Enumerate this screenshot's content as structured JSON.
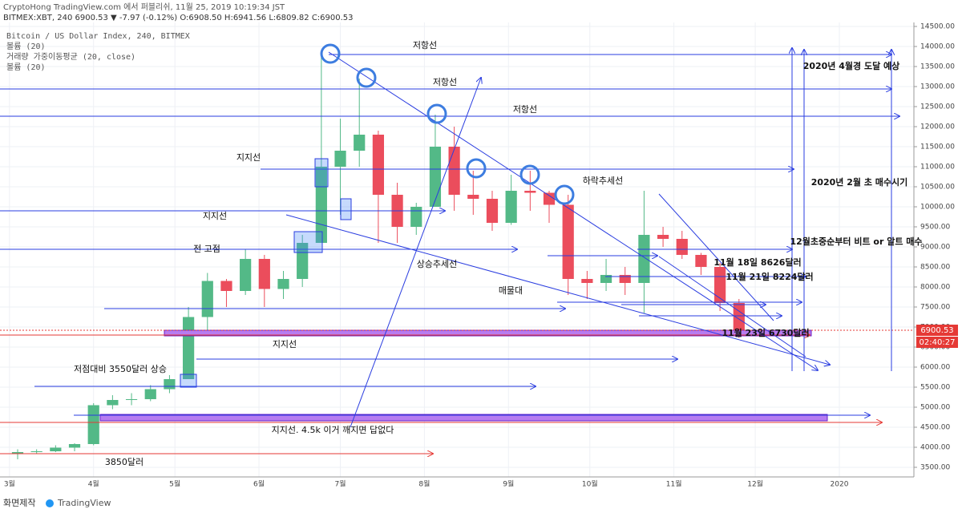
{
  "chart_data": {
    "type": "candlestick",
    "header": "CryptoHong TradingView.com 에서 퍼블리쉬, 11월 25, 2019 10:19:34 JST",
    "symbol_line": "BITMEX:XBT, 240 6900.53 ▼ -7.97 (-0.12%) O:6908.50 H:6941.56 L:6809.82 C:6900.53",
    "legend": [
      "Bitcoin / US Dollar Index, 240, BITMEX",
      "볼륨 (20)",
      "거래량 가중이동평균 (20, close)",
      "볼륨 (20)"
    ],
    "countdown": "02:40:27",
    "footer": [
      "화면제작",
      "TradingView"
    ],
    "annotations": [
      "저항선",
      "저항선",
      "저항선",
      "지지선",
      "지지선",
      "지지선",
      "전 고점",
      "상승추세선",
      "매물대",
      "하락추세선",
      "11월 18일 8626달러",
      "11월 21일 8224달러",
      "11월 23일 6730달러",
      "12월초중순부터 비트 or 알트 매수",
      "2020년 4월경 도달 예상",
      "2020년 2월 초 매수시기",
      "저점대비 3550달러 상승",
      "지지선. 4.5k 이거 깨지면 답없다",
      "3850달러"
    ],
    "x": [
      3,
      10,
      17,
      24,
      31,
      38,
      45,
      52,
      59,
      66,
      73,
      80,
      87,
      94,
      101,
      108,
      115,
      122,
      129,
      136,
      143,
      150,
      157,
      164,
      171,
      178,
      185,
      192,
      199,
      206,
      213,
      220,
      227,
      234,
      241,
      248,
      255,
      262,
      269
    ],
    "open": [
      3850,
      3880,
      3900,
      3990,
      4080,
      5050,
      5180,
      5200,
      5450,
      5700,
      7250,
      8150,
      7900,
      8700,
      7950,
      8200,
      9100,
      11000,
      11400,
      11800,
      10300,
      9500,
      10000,
      11500,
      10300,
      10200,
      9600,
      10400,
      10350,
      10050,
      8200,
      8100,
      8300,
      8100,
      9300,
      9200,
      8800,
      8500,
      7600
    ],
    "high": [
      3950,
      3950,
      4050,
      4100,
      5100,
      5300,
      5350,
      5550,
      5800,
      7500,
      8350,
      8200,
      8950,
      8800,
      8400,
      9300,
      13800,
      12200,
      13200,
      11900,
      10600,
      10100,
      12300,
      12000,
      10900,
      10400,
      10800,
      10900,
      10400,
      10300,
      8400,
      8700,
      8500,
      10400,
      9500,
      9400,
      8850,
      8600,
      7700
    ],
    "low": [
      3700,
      3830,
      3880,
      3900,
      4050,
      4950,
      5050,
      5150,
      5350,
      5700,
      6900,
      7500,
      7800,
      7500,
      7700,
      8000,
      9100,
      9800,
      11000,
      9100,
      9100,
      9300,
      10000,
      9900,
      9800,
      9400,
      9550,
      9900,
      9600,
      7800,
      7700,
      7900,
      7800,
      7350,
      9000,
      8700,
      8300,
      7400,
      6730
    ],
    "close": [
      3880,
      3900,
      3990,
      4080,
      5050,
      5180,
      5200,
      5450,
      5700,
      7250,
      8150,
      7900,
      8700,
      7950,
      8200,
      9100,
      11000,
      11400,
      11800,
      10300,
      9500,
      10000,
      11500,
      10300,
      10200,
      9600,
      10400,
      10350,
      10050,
      8200,
      8100,
      8300,
      8100,
      9300,
      9200,
      8800,
      8500,
      7600,
      6900.53
    ],
    "up_color": "#53b987",
    "down_color": "#eb4d5c",
    "xlim": [
      -3.5,
      333.5
    ],
    "xticks": [
      {
        "value": 0,
        "label": "3월"
      },
      {
        "value": 31,
        "label": "4월"
      },
      {
        "value": 61,
        "label": "5월"
      },
      {
        "value": 92,
        "label": "6월"
      },
      {
        "value": 122,
        "label": "7월"
      },
      {
        "value": 153,
        "label": "8월"
      },
      {
        "value": 184,
        "label": "9월"
      },
      {
        "value": 214,
        "label": "10월"
      },
      {
        "value": 245,
        "label": "11월"
      },
      {
        "value": 275,
        "label": "12월"
      },
      {
        "value": 306,
        "label": "2020"
      }
    ],
    "ylim": [
      3400,
      14600
    ],
    "yticks": [
      {
        "value": 3500,
        "label": "3500.00"
      },
      {
        "value": 4000,
        "label": "4000.00"
      },
      {
        "value": 4500,
        "label": "4500.00"
      },
      {
        "value": 5000,
        "label": "5000.00"
      },
      {
        "value": 5500,
        "label": "5500.00"
      },
      {
        "value": 6000,
        "label": "6000.00"
      },
      {
        "value": 6500,
        "label": "6500.00"
      },
      {
        "value": 7000,
        "label": "7000.00"
      },
      {
        "value": 7500,
        "label": "7500.00"
      },
      {
        "value": 8000,
        "label": "8000.00"
      },
      {
        "value": 8500,
        "label": "8500.00"
      },
      {
        "value": 9000,
        "label": "9000.00"
      },
      {
        "value": 9500,
        "label": "9500.00"
      },
      {
        "value": 10000,
        "label": "10000.00"
      },
      {
        "value": 10500,
        "label": "10500.00"
      },
      {
        "value": 11000,
        "label": "11000.00"
      },
      {
        "value": 11500,
        "label": "11500.00"
      },
      {
        "value": 12000,
        "label": "12000.00"
      },
      {
        "value": 12500,
        "label": "12500.00"
      },
      {
        "value": 13000,
        "label": "13000.00"
      },
      {
        "value": 13500,
        "label": "13500.00"
      },
      {
        "value": 14000,
        "label": "14000.00"
      },
      {
        "value": 14500,
        "label": "14500.00"
      }
    ],
    "grid": true
  }
}
